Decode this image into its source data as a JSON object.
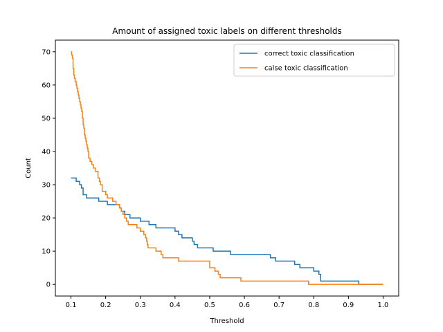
{
  "chart_data": {
    "type": "line",
    "title": "Amount of assigned toxic labels on different thresholds",
    "xlabel": "Threshold",
    "ylabel": "Count",
    "xlim": [
      0.055,
      1.045
    ],
    "ylim": [
      -3.5,
      73.5
    ],
    "xticks": [
      0.1,
      0.2,
      0.3,
      0.4,
      0.5,
      0.6,
      0.7,
      0.8,
      0.9,
      1.0
    ],
    "xtick_labels": [
      "0.1",
      "0.2",
      "0.3",
      "0.4",
      "0.5",
      "0.6",
      "0.7",
      "0.8",
      "0.9",
      "1.0"
    ],
    "yticks": [
      0,
      10,
      20,
      30,
      40,
      50,
      60,
      70
    ],
    "ytick_labels": [
      "0",
      "10",
      "20",
      "30",
      "40",
      "50",
      "60",
      "70"
    ],
    "grid": false,
    "legend_position": "top-right",
    "series": [
      {
        "name": "correct toxic classification",
        "color": "#1f77b4",
        "step": true,
        "x": [
          0.1,
          0.115,
          0.125,
          0.13,
          0.135,
          0.145,
          0.18,
          0.205,
          0.24,
          0.245,
          0.255,
          0.27,
          0.3,
          0.325,
          0.345,
          0.4,
          0.41,
          0.42,
          0.45,
          0.455,
          0.465,
          0.51,
          0.56,
          0.675,
          0.69,
          0.745,
          0.76,
          0.8,
          0.815,
          0.82,
          0.93,
          1.0
        ],
        "y": [
          32,
          31,
          30,
          29,
          27,
          26,
          25,
          24,
          23,
          22,
          21,
          20,
          19,
          18,
          17,
          16,
          15,
          14,
          13,
          12,
          11,
          10,
          9,
          8,
          7,
          6,
          5,
          4,
          3,
          1,
          0,
          0
        ]
      },
      {
        "name": "calse toxic classification",
        "color": "#ff7f0e",
        "step": true,
        "x": [
          0.1,
          0.102,
          0.104,
          0.106,
          0.108,
          0.11,
          0.112,
          0.115,
          0.117,
          0.119,
          0.121,
          0.123,
          0.125,
          0.127,
          0.129,
          0.131,
          0.133,
          0.135,
          0.137,
          0.139,
          0.141,
          0.143,
          0.145,
          0.147,
          0.149,
          0.151,
          0.155,
          0.16,
          0.165,
          0.17,
          0.178,
          0.182,
          0.185,
          0.19,
          0.2,
          0.205,
          0.22,
          0.23,
          0.24,
          0.245,
          0.25,
          0.255,
          0.26,
          0.265,
          0.29,
          0.3,
          0.31,
          0.315,
          0.318,
          0.32,
          0.322,
          0.33,
          0.345,
          0.36,
          0.365,
          0.38,
          0.4,
          0.41,
          0.5,
          0.515,
          0.525,
          0.53,
          0.535,
          0.59,
          0.69,
          0.785,
          0.81,
          1.0
        ],
        "y": [
          70,
          69,
          68,
          65,
          63,
          62,
          61,
          60,
          59,
          58,
          57,
          56,
          55,
          54,
          53,
          52,
          50,
          48,
          47,
          45,
          44,
          43,
          42,
          41,
          40,
          38,
          37,
          36,
          35,
          34,
          32,
          31,
          30,
          28,
          27,
          26,
          25,
          24,
          23,
          22,
          21,
          20,
          19,
          18,
          17,
          16,
          15,
          14,
          13,
          12,
          11,
          11,
          10,
          9,
          8,
          8,
          8,
          7,
          5,
          4,
          3,
          2,
          2,
          1,
          1,
          0,
          0,
          0
        ]
      }
    ]
  }
}
